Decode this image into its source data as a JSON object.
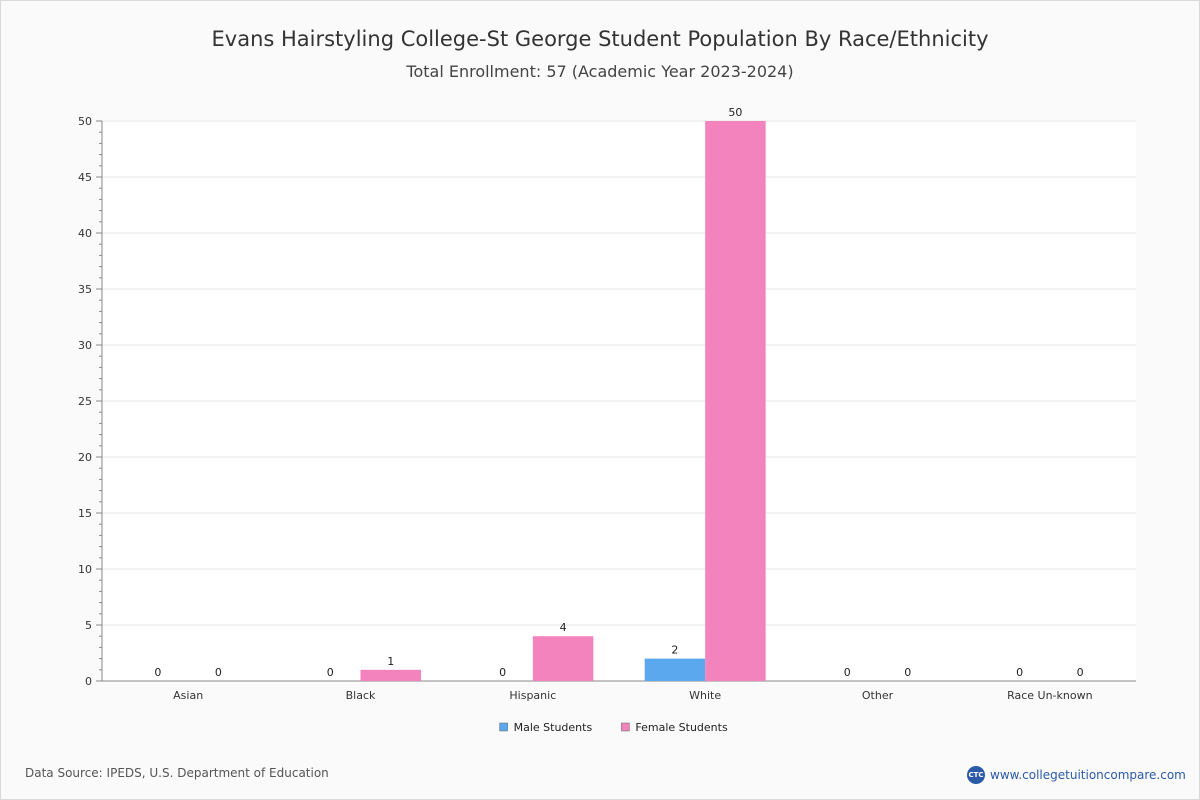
{
  "chart_data": {
    "type": "bar",
    "title": "Evans Hairstyling College-St George Student Population By Race/Ethnicity",
    "subtitle": "Total Enrollment: 57 (Academic Year 2023-2024)",
    "categories": [
      "Asian",
      "Black",
      "Hispanic",
      "White",
      "Other",
      "Race Un-known"
    ],
    "series": [
      {
        "name": "Male Students",
        "color": "#5ba8ee",
        "values": [
          0,
          0,
          0,
          2,
          0,
          0
        ]
      },
      {
        "name": "Female Students",
        "color": "#f383bd",
        "values": [
          0,
          1,
          4,
          50,
          0,
          0
        ]
      }
    ],
    "ylim": [
      0,
      50
    ],
    "yticks": [
      0,
      5,
      10,
      15,
      20,
      25,
      30,
      35,
      40,
      45,
      50
    ],
    "grid": true,
    "legend": "bottom-center"
  },
  "footer": {
    "source": "Data Source: IPEDS, U.S. Department of Education",
    "brand_logo": "CTC",
    "brand_text": "www.collegetuitioncompare.com"
  }
}
